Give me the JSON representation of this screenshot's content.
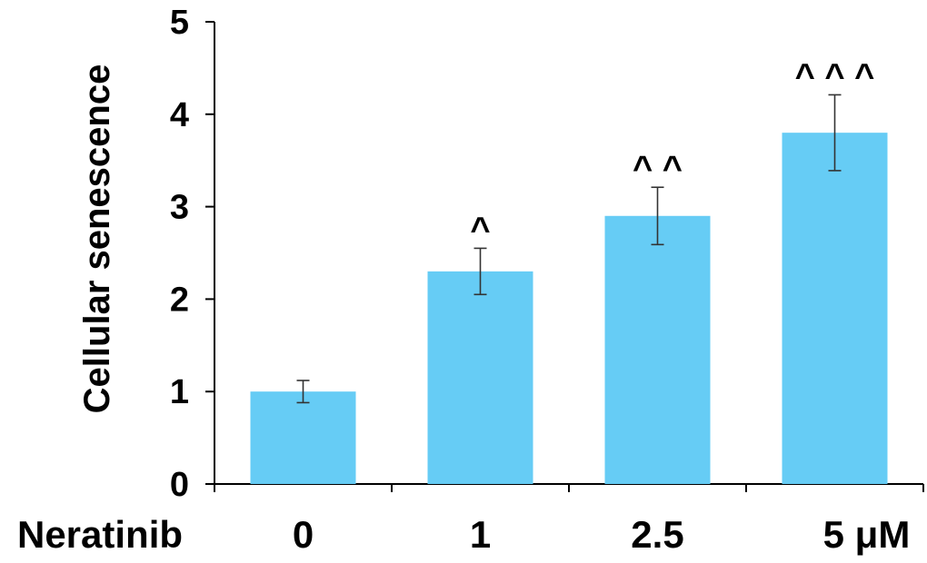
{
  "chart_data": {
    "type": "bar",
    "ylabel": "Cellular senescence",
    "xlabel": "Neratinib",
    "categories": [
      "0",
      "1",
      "2.5",
      "5 μM"
    ],
    "values": [
      1.0,
      2.3,
      2.9,
      3.8
    ],
    "errors": [
      0.12,
      0.25,
      0.31,
      0.41
    ],
    "annotations": [
      "",
      "^",
      "^ ^",
      "^ ^ ^"
    ],
    "ylim": [
      0,
      5
    ],
    "yticks": [
      "0",
      "1",
      "2",
      "3",
      "4",
      "5"
    ],
    "bar_color": "#66ccf5",
    "grid": false,
    "legend": "none"
  }
}
